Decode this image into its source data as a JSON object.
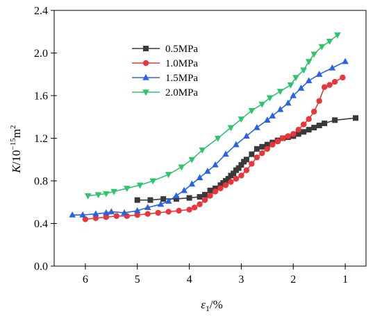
{
  "chart_data": {
    "type": "line",
    "xlabel": {
      "symbol": "ε",
      "sub": "1",
      "rest": "/%"
    },
    "ylabel": {
      "symbol": "K",
      "rest": "/10",
      "sup": "−15",
      "unit": "m",
      "unit_sup": "2"
    },
    "xlim": [
      6.6,
      0.6
    ],
    "ylim": [
      0,
      2.4
    ],
    "x_ticks": [
      6,
      5,
      4,
      3,
      2,
      1
    ],
    "y_ticks": [
      0.0,
      0.4,
      0.8,
      1.2,
      1.6,
      2.0,
      2.4
    ],
    "x_tick_labels": [
      "6",
      "5",
      "4",
      "3",
      "2",
      "1"
    ],
    "y_tick_labels": [
      "0.0",
      "0.4",
      "0.8",
      "1.2",
      "1.6",
      "2.0",
      "2.4"
    ],
    "legend_position": "top-left",
    "series": [
      {
        "name": "0.5MPa",
        "color": "#3a3a3a",
        "marker": "square",
        "x": [
          5.0,
          4.75,
          4.5,
          4.25,
          4.0,
          3.8,
          3.7,
          3.6,
          3.5,
          3.4,
          3.35,
          3.3,
          3.25,
          3.2,
          3.15,
          3.1,
          3.05,
          3.0,
          2.95,
          2.9,
          2.8,
          2.7,
          2.6,
          2.5,
          2.4,
          2.3,
          2.2,
          2.1,
          2.0,
          1.9,
          1.8,
          1.7,
          1.6,
          1.5,
          1.4,
          1.2,
          0.8
        ],
        "y": [
          0.62,
          0.62,
          0.63,
          0.63,
          0.64,
          0.65,
          0.67,
          0.71,
          0.73,
          0.76,
          0.78,
          0.8,
          0.82,
          0.85,
          0.87,
          0.9,
          0.92,
          0.95,
          0.98,
          1.0,
          1.05,
          1.1,
          1.12,
          1.14,
          1.16,
          1.18,
          1.2,
          1.21,
          1.22,
          1.24,
          1.26,
          1.28,
          1.3,
          1.32,
          1.34,
          1.37,
          1.39
        ]
      },
      {
        "name": "1.0MPa",
        "color": "#e8363a",
        "marker": "circle",
        "x": [
          6.0,
          5.8,
          5.6,
          5.4,
          5.2,
          5.0,
          4.8,
          4.6,
          4.4,
          4.2,
          4.0,
          3.9,
          3.8,
          3.7,
          3.6,
          3.5,
          3.4,
          3.3,
          3.2,
          3.1,
          3.0,
          2.9,
          2.8,
          2.7,
          2.6,
          2.5,
          2.4,
          2.3,
          2.2,
          2.1,
          2.0,
          1.9,
          1.8,
          1.7,
          1.6,
          1.5,
          1.4,
          1.3,
          1.2,
          1.05
        ],
        "y": [
          0.44,
          0.45,
          0.46,
          0.47,
          0.47,
          0.48,
          0.49,
          0.5,
          0.51,
          0.52,
          0.53,
          0.55,
          0.58,
          0.62,
          0.66,
          0.7,
          0.73,
          0.76,
          0.79,
          0.82,
          0.85,
          0.9,
          0.96,
          1.02,
          1.06,
          1.1,
          1.14,
          1.17,
          1.2,
          1.22,
          1.24,
          1.28,
          1.33,
          1.38,
          1.45,
          1.55,
          1.68,
          1.7,
          1.73,
          1.77
        ]
      },
      {
        "name": "1.5MPa",
        "color": "#2a62e6",
        "marker": "triangle-up",
        "x": [
          6.25,
          6.05,
          5.8,
          5.6,
          5.5,
          5.25,
          5.0,
          4.8,
          4.55,
          4.4,
          4.25,
          4.1,
          3.95,
          3.8,
          3.65,
          3.5,
          3.3,
          3.1,
          2.9,
          2.7,
          2.5,
          2.4,
          2.25,
          2.1,
          2.0,
          1.85,
          1.7,
          1.5,
          1.25,
          1.0
        ],
        "y": [
          0.48,
          0.48,
          0.49,
          0.5,
          0.51,
          0.5,
          0.52,
          0.55,
          0.58,
          0.61,
          0.66,
          0.71,
          0.77,
          0.83,
          0.89,
          0.95,
          1.05,
          1.14,
          1.22,
          1.3,
          1.37,
          1.41,
          1.47,
          1.53,
          1.6,
          1.67,
          1.74,
          1.8,
          1.86,
          1.92
        ]
      },
      {
        "name": "2.0MPa",
        "color": "#2ec46a",
        "marker": "triangle-down",
        "x": [
          5.95,
          5.75,
          5.6,
          5.45,
          5.2,
          4.95,
          4.7,
          4.4,
          4.15,
          3.95,
          3.75,
          3.45,
          3.2,
          3.0,
          2.8,
          2.6,
          2.45,
          2.25,
          2.05,
          1.95,
          1.8,
          1.7,
          1.6,
          1.45,
          1.3,
          1.15
        ],
        "y": [
          0.66,
          0.67,
          0.68,
          0.7,
          0.73,
          0.76,
          0.8,
          0.86,
          0.93,
          1.0,
          1.09,
          1.2,
          1.3,
          1.38,
          1.46,
          1.52,
          1.58,
          1.64,
          1.7,
          1.77,
          1.84,
          1.92,
          1.99,
          2.06,
          2.11,
          2.17
        ]
      }
    ]
  }
}
